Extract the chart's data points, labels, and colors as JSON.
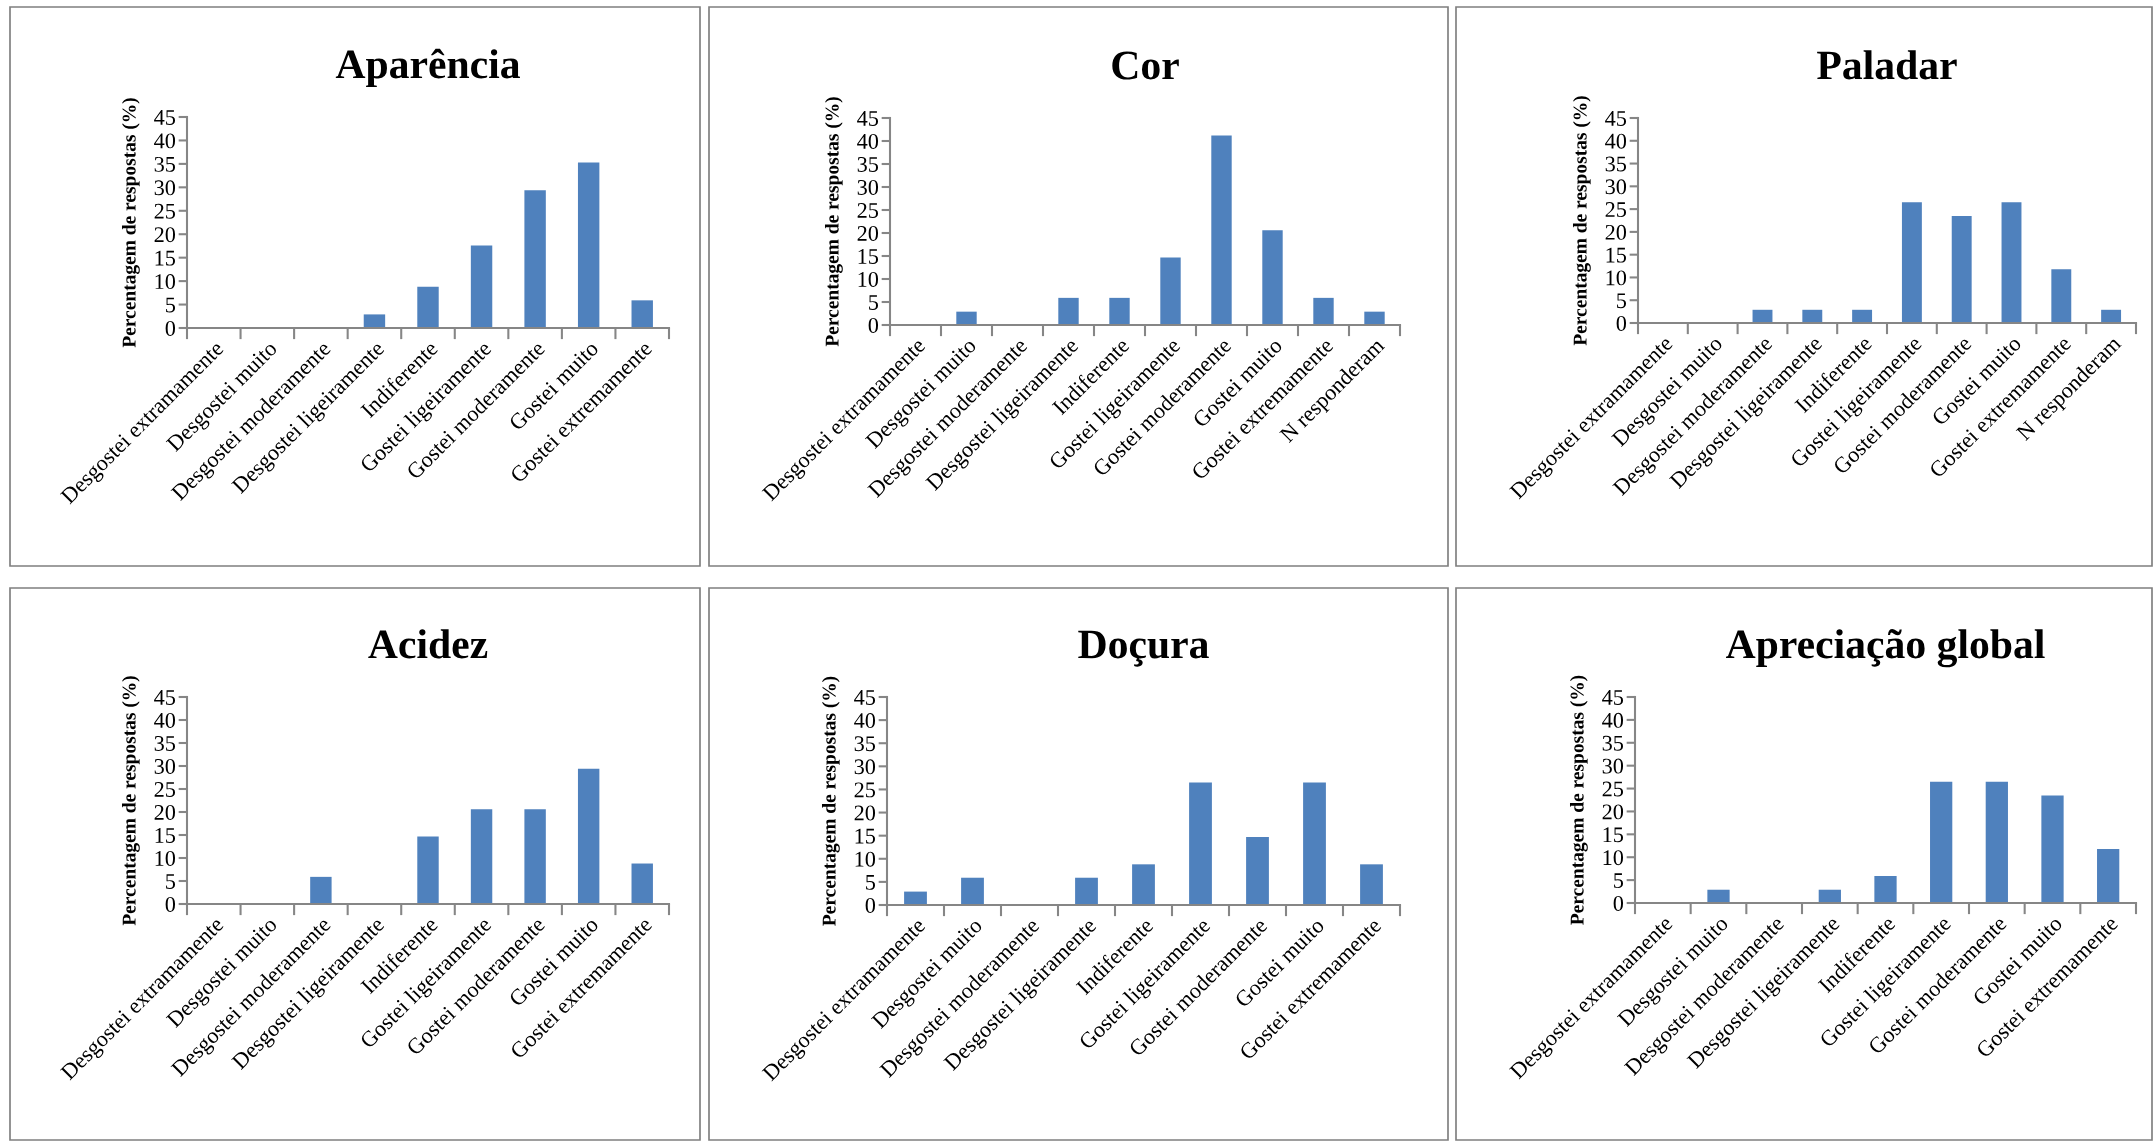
{
  "chart_data": [
    {
      "type": "bar",
      "title": "Aparência",
      "ylabel": "Percentagem de respostas (%)",
      "categories": [
        "Desgostei extramamente",
        "Desgostei muito",
        "Desgostei moderamente",
        "Desgostei ligeiramente",
        "Indiferente",
        "Gostei ligeiramente",
        "Gostei moderamente",
        "Gostei muito",
        "Gostei extremamente"
      ],
      "values": [
        0,
        0,
        0,
        2.9,
        8.8,
        17.6,
        29.4,
        35.3,
        5.9
      ],
      "color": "#4f81bd",
      "ylim": [
        0,
        45
      ],
      "yticks": [
        0,
        5,
        10,
        15,
        20,
        25,
        30,
        35,
        40,
        45
      ]
    },
    {
      "type": "bar",
      "title": "Cor",
      "ylabel": "Percentagem de respostas (%)",
      "categories": [
        "Desgostei extramamente",
        "Desgostei muito",
        "Desgostei moderamente",
        "Desgostei ligeiramente",
        "Indiferente",
        "Gostei ligeiramente",
        "Gostei moderamente",
        "Gostei muito",
        "Gostei extremamente",
        "N responderam"
      ],
      "values": [
        0,
        2.9,
        0,
        5.9,
        5.9,
        14.7,
        41.2,
        20.6,
        5.9,
        2.9
      ],
      "color": "#4f81bd",
      "ylim": [
        0,
        45
      ],
      "yticks": [
        0,
        5,
        10,
        15,
        20,
        25,
        30,
        35,
        40,
        45
      ]
    },
    {
      "type": "bar",
      "title": "Paladar",
      "ylabel": "Percentagem de respostas (%)",
      "categories": [
        "Desgostei extramamente",
        "Desgostei muito",
        "Desgostei moderamente",
        "Desgostei ligeiramente",
        "Indiferente",
        "Gostei ligeiramente",
        "Gostei moderamente",
        "Gostei muito",
        "Gostei extremamente",
        "N responderam"
      ],
      "values": [
        0,
        0,
        2.9,
        2.9,
        2.9,
        26.5,
        23.5,
        26.5,
        11.8,
        2.9
      ],
      "color": "#4f81bd",
      "ylim": [
        0,
        45
      ],
      "yticks": [
        0,
        5,
        10,
        15,
        20,
        25,
        30,
        35,
        40,
        45
      ]
    },
    {
      "type": "bar",
      "title": "Acidez",
      "ylabel": "Percentagem de respostas (%)",
      "categories": [
        "Desgostei extramamente",
        "Desgostei muito",
        "Desgostei moderamente",
        "Desgostei ligeiramente",
        "Indiferente",
        "Gostei ligeiramente",
        "Gostei moderamente",
        "Gostei muito",
        "Gostei extremamente"
      ],
      "values": [
        0,
        0,
        5.9,
        0,
        14.7,
        20.6,
        20.6,
        29.4,
        8.8
      ],
      "color": "#4f81bd",
      "ylim": [
        0,
        45
      ],
      "yticks": [
        0,
        5,
        10,
        15,
        20,
        25,
        30,
        35,
        40,
        45
      ]
    },
    {
      "type": "bar",
      "title": "Doçura",
      "ylabel": "Percentagem de respostas (%)",
      "categories": [
        "Desgostei extramamente",
        "Desgostei muito",
        "Desgostei moderamente",
        "Desgostei ligeiramente",
        "Indiferente",
        "Gostei ligeiramente",
        "Gostei moderamente",
        "Gostei muito",
        "Gostei extremamente"
      ],
      "values": [
        2.9,
        5.9,
        0,
        5.9,
        8.8,
        26.5,
        14.7,
        26.5,
        8.8
      ],
      "color": "#4f81bd",
      "ylim": [
        0,
        45
      ],
      "yticks": [
        0,
        5,
        10,
        15,
        20,
        25,
        30,
        35,
        40,
        45
      ]
    },
    {
      "type": "bar",
      "title": "Apreciação global",
      "ylabel": "Percentagem de respostas (%)",
      "categories": [
        "Desgostei extramamente",
        "Desgostei muito",
        "Desgostei moderamente",
        "Desgostei ligeiramente",
        "Indiferente",
        "Gostei ligeiramente",
        "Gostei moderamente",
        "Gostei muito",
        "Gostei extremamente"
      ],
      "values": [
        0,
        2.9,
        0,
        2.9,
        5.9,
        26.5,
        26.5,
        23.5,
        11.8
      ],
      "color": "#4f81bd",
      "ylim": [
        0,
        45
      ],
      "yticks": [
        0,
        5,
        10,
        15,
        20,
        25,
        30,
        35,
        40,
        45
      ]
    }
  ]
}
